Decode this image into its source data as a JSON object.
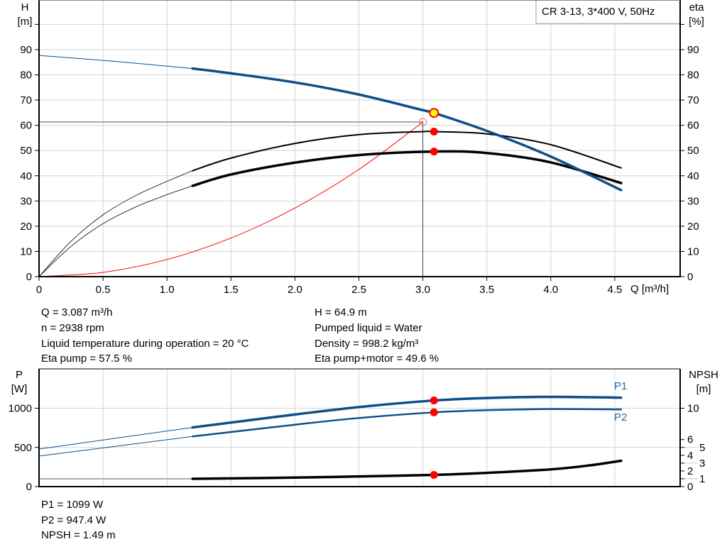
{
  "legend_box": "CR 3-13, 3*400 V, 50Hz",
  "colors": {
    "head": "#0b4f8a",
    "eta": "#000000",
    "system": "#ff0000",
    "marker": "#ff0000",
    "duty_marker_fill": "#ffff00",
    "p1": "#0b4f8a",
    "p2": "#0b4f8a",
    "npsh": "#000000"
  },
  "info_left": [
    "Q = 3.087 m³/h",
    "n = 2938 rpm",
    "Liquid temperature during operation = 20 °C",
    "Eta pump = 57.5 %"
  ],
  "info_right": [
    "H = 64.9 m",
    "Pumped liquid = Water",
    "Density = 998.2 kg/m³",
    "Eta pump+motor = 49.6 %"
  ],
  "info_bottom": [
    "P1 = 1099 W",
    "P2 = 947.4 W",
    "NPSH = 1.49 m"
  ],
  "chart_data": [
    {
      "type": "line",
      "title": "",
      "xlabel": "Q [m³/h]",
      "ylabel_left": [
        "H",
        "[m]"
      ],
      "ylabel_right": [
        "eta",
        "[%]"
      ],
      "xlim": [
        0,
        5.0
      ],
      "ylim": [
        0,
        110
      ],
      "x_ticks": [
        "0",
        "0.5",
        "1.0",
        "1.5",
        "2.0",
        "2.5",
        "3.0",
        "3.5",
        "4.0",
        "4.5"
      ],
      "y_ticks_left": [
        "0",
        "10",
        "20",
        "30",
        "40",
        "50",
        "60",
        "70",
        "80",
        "90"
      ],
      "y_ticks_right": [
        "0",
        "10",
        "20",
        "30",
        "40",
        "50",
        "60",
        "70",
        "80",
        "90"
      ],
      "grid": true,
      "series": [
        {
          "key": "head",
          "x": [
            0,
            0.6,
            1.2,
            1.5,
            2.0,
            2.5,
            3.0,
            3.087,
            3.5,
            4.0,
            4.55
          ],
          "y": [
            87.7,
            85.3,
            82.5,
            80.6,
            77.0,
            72.2,
            66.0,
            64.9,
            57.8,
            47.6,
            34.3
          ],
          "thin_until": 1.2
        },
        {
          "key": "eta_pump",
          "x": [
            0,
            0.25,
            0.5,
            0.75,
            1.0,
            1.2,
            1.5,
            2.0,
            2.5,
            3.0,
            3.087,
            3.5,
            4.0,
            4.55
          ],
          "y": [
            0,
            14,
            24.5,
            32,
            37.8,
            42,
            47,
            52.8,
            56.3,
            57.5,
            57.5,
            56.6,
            52.3,
            43.1
          ],
          "thin_until": 1.2
        },
        {
          "key": "eta_pump_motor",
          "x": [
            0,
            0.25,
            0.5,
            0.75,
            1.0,
            1.2,
            1.5,
            2.0,
            2.5,
            3.087,
            3.5,
            4.0,
            4.55
          ],
          "y": [
            0,
            12,
            21,
            27.5,
            32.5,
            36,
            40.5,
            45.2,
            48.2,
            49.6,
            49,
            45.3,
            37.1
          ],
          "thin_until": 1.2
        },
        {
          "key": "system",
          "x": [
            0,
            0.5,
            1.0,
            1.5,
            2.0,
            2.5,
            3.0
          ],
          "y": [
            0,
            1.7,
            6.8,
            15.3,
            27.2,
            42.5,
            61.3
          ]
        }
      ],
      "operating_point": {
        "q": 3.087,
        "h": 64.9,
        "eta_pump": 57.5,
        "eta_pump_motor": 49.6
      },
      "requested_point": {
        "q": 3.0,
        "h": 61.3
      }
    },
    {
      "type": "line",
      "title": "",
      "ylabel_left": [
        "P",
        "[W]"
      ],
      "ylabel_right": [
        "NPSH",
        "[m]"
      ],
      "xlim": [
        0,
        5.0
      ],
      "ylim": [
        0,
        1500
      ],
      "y_ticks_left": [
        "0",
        "500",
        "1000"
      ],
      "y_ticks_right": [
        "0",
        "1",
        "2",
        "3",
        "4",
        "5",
        "6",
        "10"
      ],
      "grid": true,
      "series": [
        {
          "key": "p1",
          "name": "P1",
          "x": [
            0,
            1.2,
            2.0,
            2.5,
            3.087,
            3.5,
            4.0,
            4.55
          ],
          "y": [
            480,
            755,
            920,
            1015,
            1099,
            1130,
            1145,
            1135
          ],
          "thin_until": 1.2
        },
        {
          "key": "p2",
          "name": "P2",
          "x": [
            0,
            1.2,
            2.0,
            2.5,
            3.087,
            3.5,
            4.0,
            4.55
          ],
          "y": [
            390,
            640,
            790,
            875,
            947.4,
            975,
            990,
            985
          ],
          "thin_until": 1.2
        },
        {
          "key": "npsh",
          "x": [
            1.2,
            2.0,
            2.5,
            3.087,
            3.5,
            4.0,
            4.3,
            4.55
          ],
          "y": [
            1.0,
            1.15,
            1.3,
            1.49,
            1.75,
            2.2,
            2.7,
            3.3
          ],
          "axis": "right"
        }
      ],
      "operating_point": {
        "q": 3.087,
        "p1": 1099,
        "p2": 947.4,
        "npsh": 1.49
      }
    }
  ]
}
